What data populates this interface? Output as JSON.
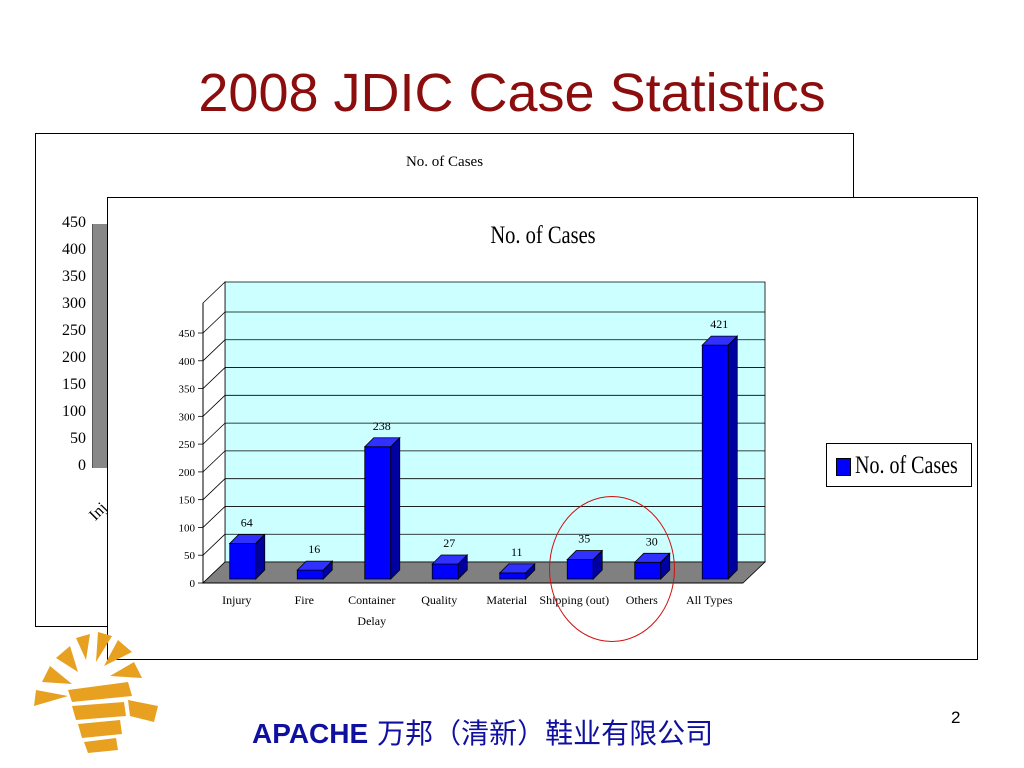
{
  "slide": {
    "title": "2008 JDIC Case Statistics",
    "page_number": "2",
    "footer_brand": "APACHE",
    "footer_company": "万邦（清新）鞋业有限公司"
  },
  "back_chart": {
    "title": "No. of Cases",
    "y_ticks": [
      "450",
      "400",
      "350",
      "300",
      "250",
      "200",
      "150",
      "100",
      "50",
      "0"
    ],
    "x_label_fragment": "Inj"
  },
  "chart_data": {
    "type": "bar",
    "title": "No. of Cases",
    "categories": [
      "Injury",
      "Fire",
      "Container Delay",
      "Quality",
      "Material",
      "Shipping (out)",
      "Others",
      "All Types"
    ],
    "series": [
      {
        "name": "No. of Cases",
        "values": [
          64,
          16,
          238,
          27,
          11,
          35,
          30,
          421
        ],
        "color": "#0000ff"
      }
    ],
    "ylim": [
      0,
      450
    ],
    "y_ticks": [
      0,
      50,
      100,
      150,
      200,
      250,
      300,
      350,
      400,
      450
    ],
    "xlabel": "",
    "ylabel": "",
    "grid": true,
    "plot_background": "#ccffff",
    "floor_color": "#808080",
    "legend_position": "right",
    "annotation": "red circle around Shipping (out) and Others"
  },
  "colors": {
    "title": "#8b0d0d",
    "bar": "#0000ff",
    "circle": "#d01010",
    "footer": "#1010a0"
  }
}
